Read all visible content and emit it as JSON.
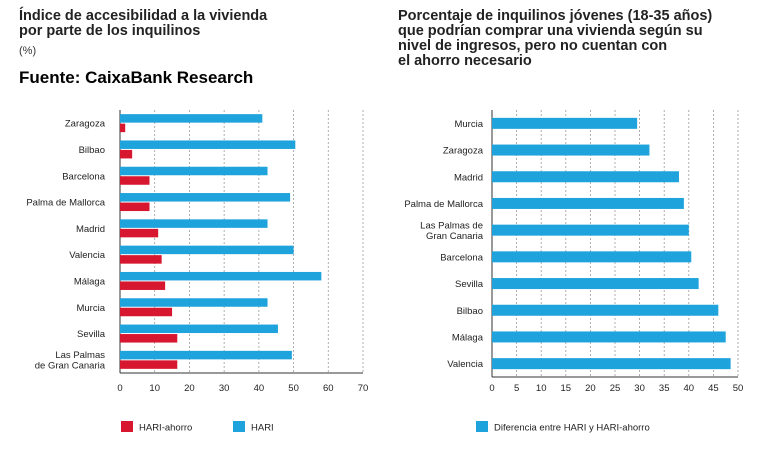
{
  "source": "Fuente: CaixaBank Research",
  "colors": {
    "hari_ahorro": "#d7172f",
    "hari": "#1ea3dc",
    "diferencia": "#1ea3dc",
    "grid": "#9a9a9a",
    "axis": "#333333"
  },
  "chart_data": [
    {
      "type": "bar",
      "orientation": "horizontal",
      "title_lines": [
        "Índice de accesibilidad a la vivienda",
        "por parte de los inquilinos"
      ],
      "unit": "(%)",
      "categories": [
        [
          "Zaragoza"
        ],
        [
          "Bilbao"
        ],
        [
          "Barcelona"
        ],
        [
          "Palma de Mallorca"
        ],
        [
          "Madrid"
        ],
        [
          "Valencia"
        ],
        [
          "Málaga"
        ],
        [
          "Murcia"
        ],
        [
          "Sevilla"
        ],
        [
          "Las Palmas",
          "de Gran Canaria"
        ]
      ],
      "series": [
        {
          "name": "HARI-ahorro",
          "color": "#d7172f",
          "values": [
            1.5,
            3.5,
            8.5,
            8.5,
            11,
            12,
            13,
            15,
            16.5,
            16.5
          ]
        },
        {
          "name": "HARI",
          "color": "#1ea3dc",
          "values": [
            41,
            50.5,
            42.5,
            49,
            42.5,
            50,
            58,
            42.5,
            45.5,
            49.5
          ]
        }
      ],
      "xlim": [
        0,
        70
      ],
      "xticks": [
        0,
        10,
        20,
        30,
        40,
        50,
        60,
        70
      ],
      "grid": true,
      "legend": "bottom"
    },
    {
      "type": "bar",
      "orientation": "horizontal",
      "title_lines": [
        "Porcentaje de inquilinos jóvenes (18-35 años)",
        "que podrían comprar una vivienda según su",
        "nivel de ingresos, pero no cuentan con",
        "el ahorro necesario"
      ],
      "categories": [
        [
          "Murcia"
        ],
        [
          "Zaragoza"
        ],
        [
          "Madrid"
        ],
        [
          "Palma de Mallorca"
        ],
        [
          "Las Palmas de",
          "Gran Canaria"
        ],
        [
          "Barcelona"
        ],
        [
          "Sevilla"
        ],
        [
          "Bilbao"
        ],
        [
          "Málaga"
        ],
        [
          "Valencia"
        ]
      ],
      "series": [
        {
          "name": "Diferencia entre HARI y HARI-ahorro",
          "color": "#1ea3dc",
          "values": [
            29.5,
            32,
            38,
            39,
            40,
            40.5,
            42,
            46,
            47.5,
            48.5
          ]
        }
      ],
      "xlim": [
        0,
        50
      ],
      "xticks": [
        0,
        5,
        10,
        15,
        20,
        25,
        30,
        35,
        40,
        45,
        50
      ],
      "grid": true,
      "legend": "bottom"
    }
  ]
}
